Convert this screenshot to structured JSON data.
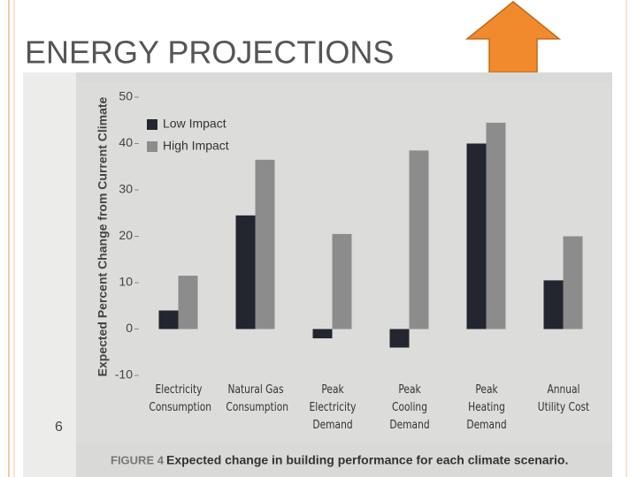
{
  "slide_title": "ENERGY PROJECTIONS",
  "page_number": "6",
  "chart_data": {
    "type": "bar",
    "y_label": "Expected Percent Change from Current Climate",
    "categories": [
      "Electricity Consumption",
      "Natural Gas Consumption",
      "Peak Electricity Demand",
      "Peak Cooling Demand",
      "Peak Heating Demand",
      "Annual Utility Cost"
    ],
    "series": [
      {
        "name": "Low Impact",
        "color": "#23262e",
        "values": [
          4,
          24.5,
          -2,
          -4,
          40,
          10.5
        ]
      },
      {
        "name": "High Impact",
        "color": "#8c8c8c",
        "values": [
          11.5,
          36.5,
          20.5,
          38.5,
          44.5,
          20
        ]
      }
    ],
    "ylim": [
      -10,
      50
    ],
    "yticks": [
      -10,
      0,
      10,
      20,
      30,
      40,
      50
    ],
    "grid": false,
    "legend": "upper left",
    "caption": {
      "label": "FIGURE 4",
      "text": "Expected change in building performance for each climate scenario."
    }
  }
}
